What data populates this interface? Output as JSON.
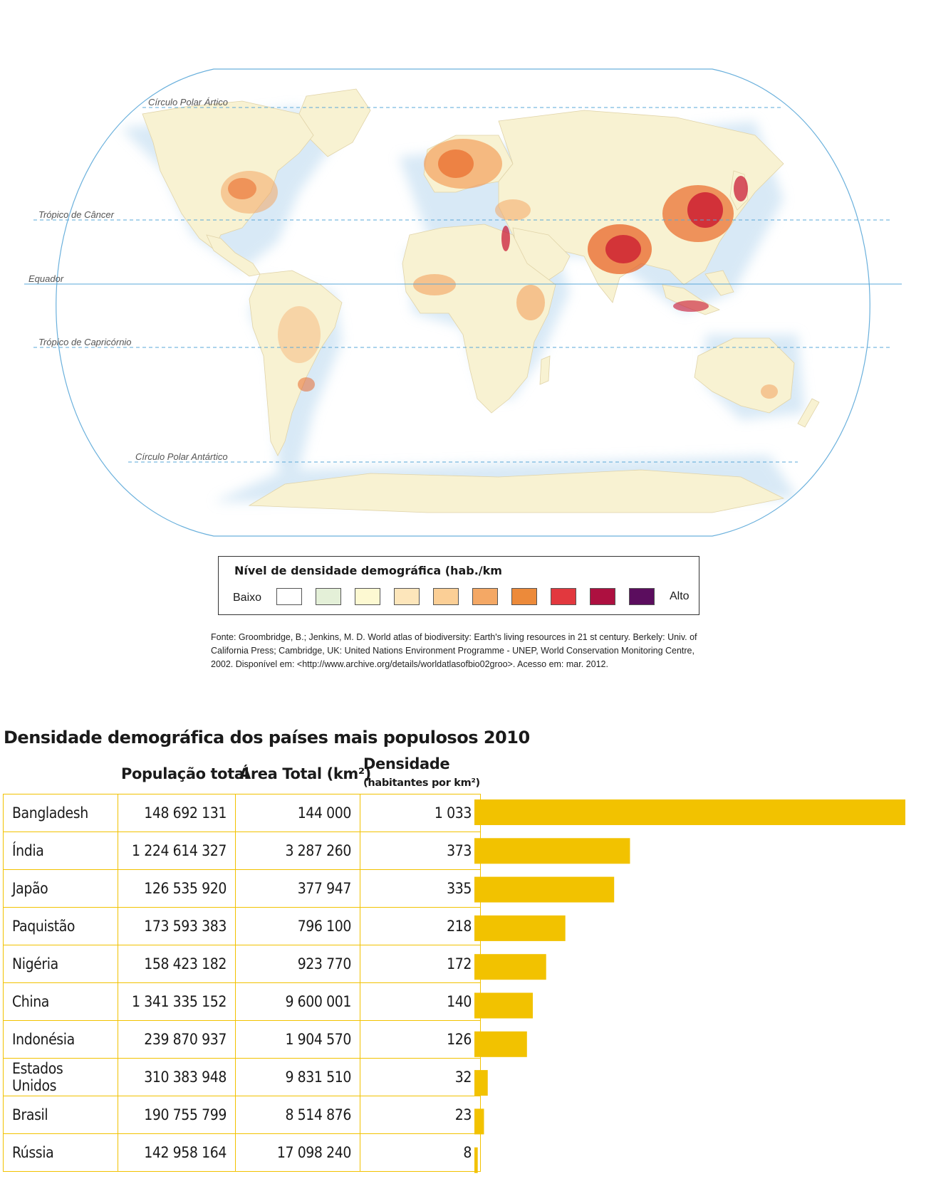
{
  "map": {
    "labels": {
      "arctic": "Círculo Polar Ártico",
      "cancer": "Trópico de Câncer",
      "equator": "Equador",
      "capricorn": "Trópico de Capricórnio",
      "antarctic": "Círculo Polar Antártico"
    },
    "land_color": "#f8f2d2",
    "ocean_color": "#ffffff",
    "graticule_color": "#5aa8d8",
    "hotspot_colors": [
      "#c8102e",
      "#e85d1c",
      "#f29a54"
    ]
  },
  "legend": {
    "title": "Nível de densidade demográfica (hab./km",
    "low_label": "Baixo",
    "high_label": "Alto",
    "swatches": [
      "#ffffff",
      "#e4f0d8",
      "#fdf9d2",
      "#fde6bb",
      "#fbcf96",
      "#f4a865",
      "#ec8a3a",
      "#e2383e",
      "#ad1040",
      "#5b0d5e"
    ]
  },
  "source": "Fonte: Groombridge, B.; Jenkins, M. D. World atlas of biodiversity: Earth's living resources in 21 st century. Berkely: Univ. of California Press; Cambridge, UK: United Nations Environment Programme - UNEP, World Conservation Monitoring Centre, 2002. Disponível em: <http://www.archive.org/details/worldatlasofbio02groo>. Acesso em: mar. 2012.",
  "table": {
    "title": "Densidade demográfica dos países mais populosos 2010",
    "col_pop": "População total",
    "col_area": "Área Total (km²)",
    "col_dens": "Densidade",
    "col_dens_sub": "(habitantes por km²)",
    "bar_color": "#f2c200",
    "rows": [
      {
        "name": "Bangladesh",
        "pop": "148 692 131",
        "area": "144 000",
        "dens": "1 033"
      },
      {
        "name": "Índia",
        "pop": "1 224 614 327",
        "area": "3 287 260",
        "dens": "373"
      },
      {
        "name": "Japão",
        "pop": "126 535 920",
        "area": "377 947",
        "dens": "335"
      },
      {
        "name": "Paquistão",
        "pop": "173 593 383",
        "area": "796 100",
        "dens": "218"
      },
      {
        "name": "Nigéria",
        "pop": "158 423 182",
        "area": "923 770",
        "dens": "172"
      },
      {
        "name": "China",
        "pop": "1 341 335 152",
        "area": "9 600 001",
        "dens": "140"
      },
      {
        "name": "Indonésia",
        "pop": "239 870 937",
        "area": "1 904 570",
        "dens": "126"
      },
      {
        "name": "Estados Unidos",
        "pop": "310 383 948",
        "area": "9 831 510",
        "dens": "32"
      },
      {
        "name": "Brasil",
        "pop": "190 755 799",
        "area": "8 514 876",
        "dens": "23"
      },
      {
        "name": "Rússia",
        "pop": "142 958 164",
        "area": "17 098 240",
        "dens": "8"
      }
    ]
  },
  "chart_data": {
    "type": "bar",
    "title": "Densidade demográfica dos países mais populosos 2010",
    "categories": [
      "Bangladesh",
      "Índia",
      "Japão",
      "Paquistão",
      "Nigéria",
      "China",
      "Indonésia",
      "Estados Unidos",
      "Brasil",
      "Rússia"
    ],
    "values": [
      1033,
      373,
      335,
      218,
      172,
      140,
      126,
      32,
      23,
      8
    ],
    "ylabel": "Densidade (habitantes por km²)",
    "orientation": "horizontal",
    "xlim": [
      0,
      1033
    ]
  }
}
